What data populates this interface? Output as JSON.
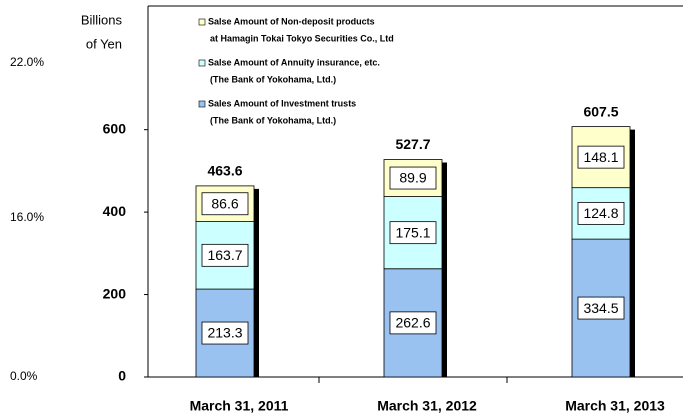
{
  "chart_data": {
    "type": "stacked_bar",
    "y_axis_label": [
      "Billions",
      "of Yen"
    ],
    "categories": [
      "March 31, 2011",
      "March 31, 2012",
      "March 31, 2013"
    ],
    "series": [
      {
        "name": "Sales Amount of  Investment trusts",
        "subname": "(The Bank of Yokohama, Ltd.)",
        "color": "#99c2f0",
        "values": [
          213.3,
          262.6,
          334.5
        ]
      },
      {
        "name": "Salse Amount of Annuity insurance, etc.",
        "subname": "(The Bank of Yokohama, Ltd.)",
        "color": "#ccffff",
        "values": [
          163.7,
          175.1,
          124.8
        ]
      },
      {
        "name": "Salse Amount of Non-deposit products",
        "subname": "at Hamagin Tokai Tokyo Securities Co., Ltd",
        "color": "#ffffcc",
        "values": [
          86.6,
          89.9,
          148.1
        ]
      }
    ],
    "totals": [
      463.6,
      527.7,
      607.5
    ],
    "ylim": [
      0,
      900
    ],
    "yticks": [
      0,
      200,
      400,
      600
    ],
    "other_text": [
      "22.0%",
      "16.0%",
      "0.0%"
    ]
  }
}
